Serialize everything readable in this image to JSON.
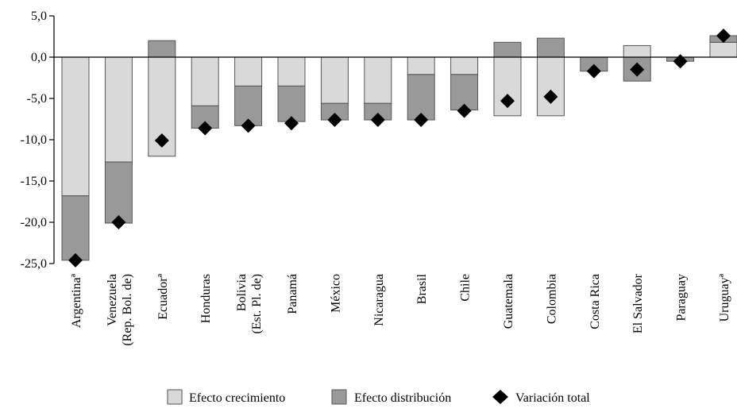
{
  "chart_data": {
    "type": "bar",
    "stacked": true,
    "categories": [
      [
        "Argentinaª"
      ],
      [
        "Venezuela",
        "(Rep. Bol. de)"
      ],
      [
        "Ecuadorª"
      ],
      [
        "Honduras"
      ],
      [
        "Bolivia",
        "(Est. Pl. de)"
      ],
      [
        "Panamá"
      ],
      [
        "México"
      ],
      [
        "Nicaragua"
      ],
      [
        "Brasil"
      ],
      [
        "Chile"
      ],
      [
        "Guatemala"
      ],
      [
        "Colombia"
      ],
      [
        "Costa Rica"
      ],
      [
        "El Salvador"
      ],
      [
        "Paraguay"
      ],
      [
        "Uruguayª"
      ]
    ],
    "series": [
      {
        "name": "Efecto crecimiento",
        "kind": "bar",
        "color": "#d9d9d9",
        "values": [
          -16.8,
          -12.7,
          -12.0,
          -5.9,
          -3.5,
          -3.5,
          -5.6,
          -5.6,
          -2.1,
          -2.1,
          -7.1,
          -7.1,
          0.0,
          1.4,
          0.0,
          1.8
        ]
      },
      {
        "name": "Efecto distribución",
        "kind": "bar",
        "color": "#999999",
        "values": [
          -7.8,
          -7.4,
          2.0,
          -2.7,
          -4.8,
          -4.3,
          -2.0,
          -2.0,
          -5.5,
          -4.3,
          1.8,
          2.3,
          -1.7,
          -2.9,
          -0.5,
          0.8
        ]
      },
      {
        "name": "Variación total",
        "kind": "marker",
        "color": "#000000",
        "values": [
          -24.6,
          -20.0,
          -10.1,
          -8.6,
          -8.3,
          -8.0,
          -7.6,
          -7.6,
          -7.6,
          -6.5,
          -5.3,
          -4.8,
          -1.7,
          -1.5,
          -0.5,
          2.6
        ]
      }
    ],
    "ylim": [
      -25,
      5
    ],
    "yticks": [
      "5,0",
      "0,0",
      "-5,0",
      "-10,0",
      "-15,0",
      "-20,0",
      "-25,0"
    ],
    "ytick_values": [
      5,
      0,
      -5,
      -10,
      -15,
      -20,
      -25
    ],
    "grid": false,
    "legend_position": "bottom"
  }
}
